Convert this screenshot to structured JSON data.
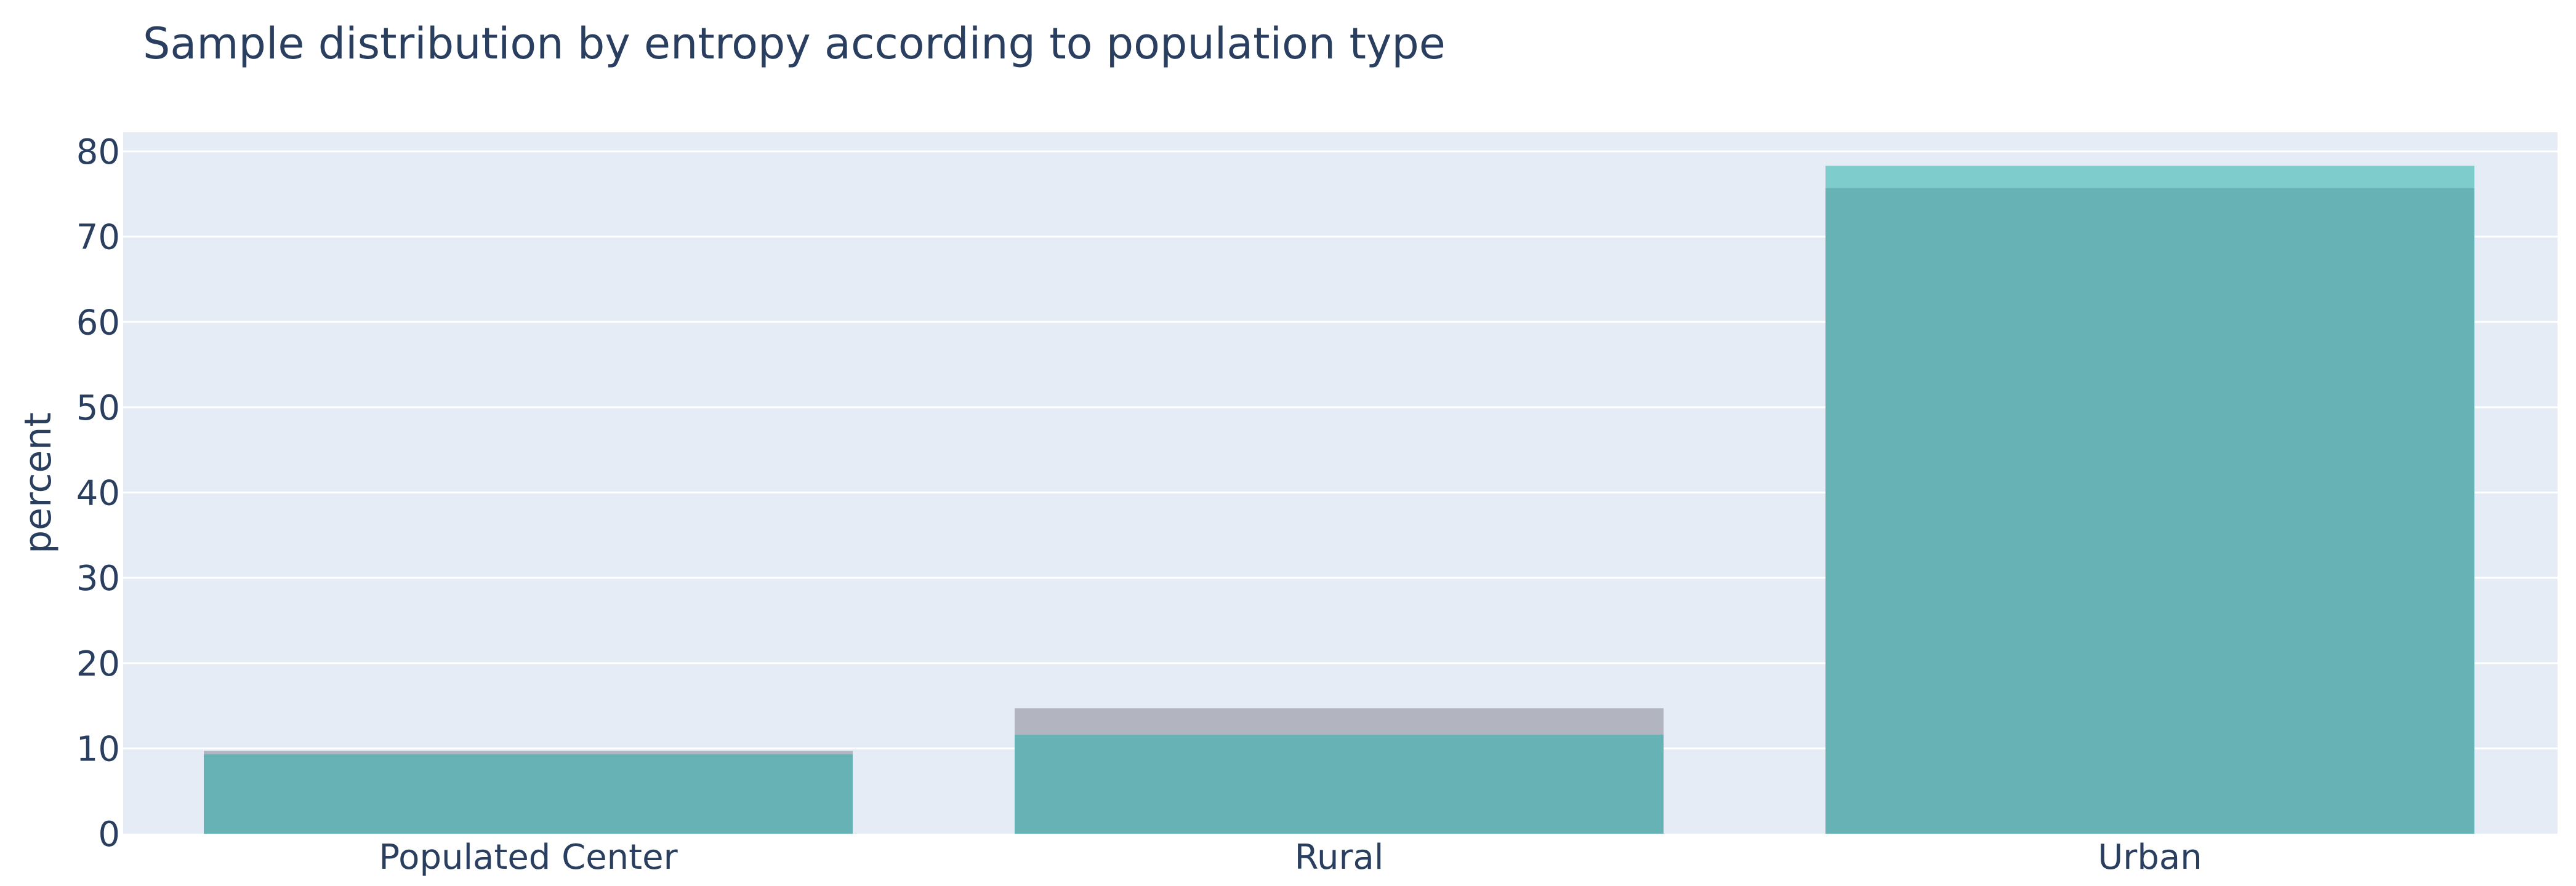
{
  "chart_data": {
    "type": "bar",
    "barmode": "overlay",
    "title": "Sample distribution by entropy according to population type",
    "xlabel": "",
    "ylabel": "percent",
    "categories": [
      "Populated Center",
      "Rural",
      "Urban"
    ],
    "ylim": [
      0,
      82.5
    ],
    "yticks": [
      0,
      10,
      20,
      30,
      40,
      50,
      60,
      70,
      80
    ],
    "grid": true,
    "series": [
      {
        "values": [
          9.7,
          14.7,
          78.3
        ],
        "color": "#b2b5bf",
        "color_urban": "#7fcccc"
      },
      {
        "values": [
          9.3,
          11.6,
          75.7
        ],
        "color": "#67b2b4"
      }
    ],
    "plot_background": "#e5ecf6",
    "grid_color": "#ffffff",
    "text_color": "#2a3f5f"
  }
}
